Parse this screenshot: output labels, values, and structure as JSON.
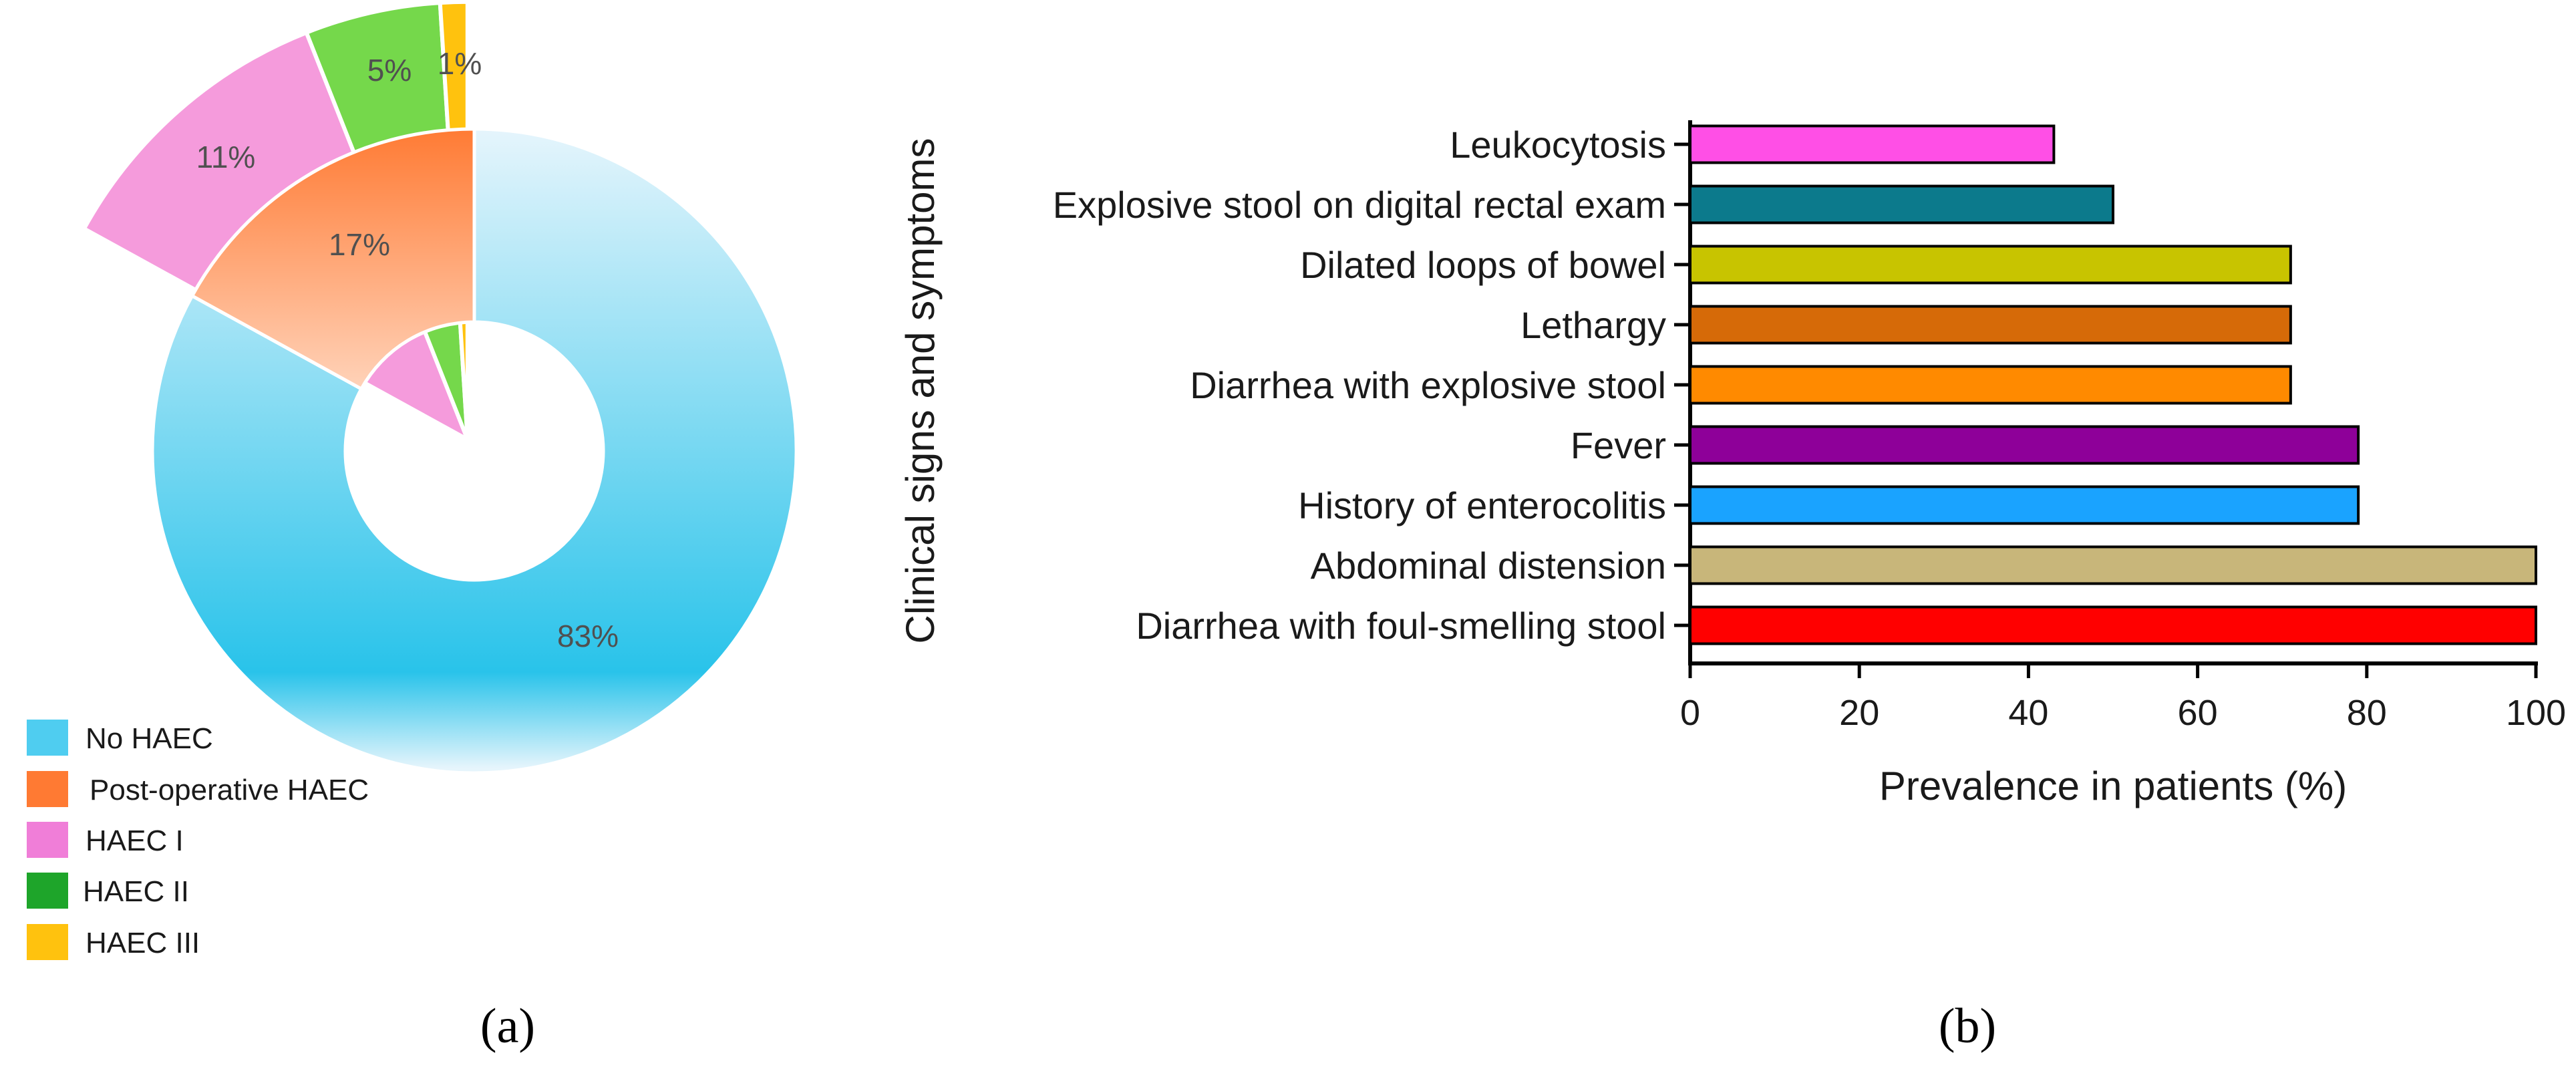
{
  "panels": {
    "a_label": "(a)",
    "b_label": "(b)"
  },
  "chart_data": [
    {
      "type": "pie",
      "style": "donut with exploded sectors",
      "slices": [
        {
          "label": "No HAEC",
          "value": 83,
          "data_label": "83%",
          "color": "#29C3EA",
          "light_color": "#E6F5FC"
        },
        {
          "label": "Post-operative HAEC",
          "value": 17,
          "data_label": "17%",
          "color": "#FF7A33",
          "light_color": "#FFD2B8"
        },
        {
          "label": "HAEC I",
          "value": 11,
          "data_label": "11%",
          "color": "#F59BDC"
        },
        {
          "label": "HAEC II",
          "value": 5,
          "data_label": "5%",
          "color": "#75D84B"
        },
        {
          "label": "HAEC III",
          "value": 1,
          "data_label": "1%",
          "color": "#FFC20E"
        }
      ],
      "legend": {
        "placement": "bottom-left",
        "entries": [
          {
            "label": "No HAEC",
            "color": "#4FCDF0"
          },
          {
            "label": "Post-operative HAEC",
            "color": "#FF7A33"
          },
          {
            "label": "HAEC I",
            "color": "#F07ED8"
          },
          {
            "label": "HAEC II",
            "color": "#1EA52A"
          },
          {
            "label": "HAEC III",
            "color": "#FFC20E"
          }
        ]
      }
    },
    {
      "type": "bar",
      "orientation": "horizontal",
      "xlabel": "Prevalence in patients (%)",
      "ylabel": "Clinical signs and symptoms",
      "xlim": [
        0,
        100
      ],
      "xticks": [
        0,
        20,
        40,
        60,
        80,
        100
      ],
      "grid": false,
      "categories": [
        "Leukocytosis",
        "Explosive stool on digital rectal exam",
        "Dilated loops of bowel",
        "Lethargy",
        "Diarrhea with explosive stool",
        "Fever",
        "History of enterocolitis",
        "Abdominal distension",
        "Diarrhea with foul-smelling stool"
      ],
      "values": [
        43,
        50,
        71,
        71,
        71,
        79,
        79,
        100,
        100
      ],
      "colors": [
        "#FF4FE6",
        "#0C7A8C",
        "#C8C400",
        "#D66A08",
        "#FF8A00",
        "#8E0099",
        "#1AA3FF",
        "#C8B67A",
        "#FF0000"
      ]
    }
  ]
}
